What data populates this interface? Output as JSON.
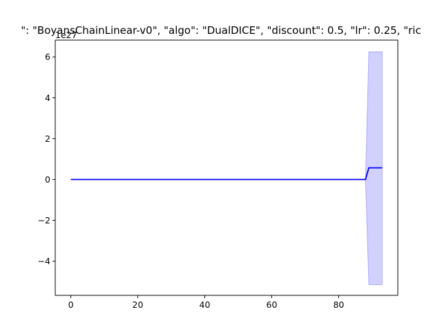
{
  "chart_data": {
    "type": "line",
    "title": "\": \"BoyansChainLinear-v0\", \"algo\": \"DualDICE\", \"discount\": 0.5, \"lr\": 0.25, \"ric",
    "xlabel": "",
    "ylabel": "",
    "y_offset_label": "1e27",
    "xlim": [
      -4.65,
      97.65
    ],
    "ylim": [
      -5.67,
      6.82
    ],
    "x_ticks": [
      0,
      20,
      40,
      60,
      80
    ],
    "y_ticks": [
      -4,
      -2,
      0,
      2,
      4,
      6
    ],
    "grid": false,
    "legend": "none",
    "series": [
      {
        "color": "#0000ff",
        "x": [
          0,
          10,
          20,
          30,
          40,
          50,
          60,
          70,
          80,
          88,
          89,
          90,
          91,
          92,
          93
        ],
        "y": [
          0,
          0,
          0,
          0,
          0,
          0,
          0,
          0,
          0,
          0,
          0.57,
          0.57,
          0.57,
          0.57,
          0.57
        ],
        "band_lower": [
          0,
          0,
          0,
          0,
          0,
          0,
          0,
          0,
          0,
          0,
          -5.15,
          -5.15,
          -5.15,
          -5.15,
          -5.15
        ],
        "band_upper": [
          0,
          0,
          0,
          0,
          0,
          0,
          0,
          0,
          0,
          0,
          6.25,
          6.25,
          6.25,
          6.25,
          6.25
        ]
      }
    ]
  }
}
